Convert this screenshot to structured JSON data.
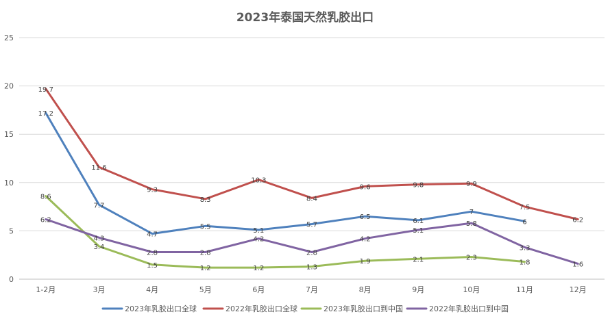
{
  "chart_data": {
    "type": "line",
    "title": "2023年泰国天然乳胶出口",
    "xlabel": "",
    "ylabel": "",
    "categories": [
      "1-2月",
      "3月",
      "4月",
      "5月",
      "6月",
      "7月",
      "8月",
      "9月",
      "10月",
      "11月",
      "12月"
    ],
    "ylim": [
      0,
      25
    ],
    "yticks": [
      "0",
      "5",
      "10",
      "15",
      "20",
      "25"
    ],
    "grid": true,
    "legend_position": "bottom",
    "series": [
      {
        "name": "2023年乳胶出口全球",
        "color": "#4f81bd",
        "values": [
          17.2,
          7.7,
          4.7,
          5.5,
          5.1,
          5.7,
          6.5,
          6.1,
          7,
          6,
          null
        ],
        "labels": [
          "17.2",
          "7.7",
          "4.7",
          "5.5",
          "5.1",
          "5.7",
          "6.5",
          "6.1",
          "7",
          "6",
          ""
        ]
      },
      {
        "name": "2022年乳胶出口全球",
        "color": "#c0504d",
        "values": [
          19.7,
          11.6,
          9.3,
          8.3,
          10.3,
          8.4,
          9.6,
          9.8,
          9.9,
          7.5,
          6.2
        ],
        "labels": [
          "19.7",
          "11.6",
          "9.3",
          "8.3",
          "10.3",
          "8.4",
          "9.6",
          "9.8",
          "9.9",
          "7.5",
          "6.2"
        ]
      },
      {
        "name": "2023年乳胶出口到中国",
        "color": "#9bbb59",
        "values": [
          8.6,
          3.4,
          1.5,
          1.2,
          1.2,
          1.3,
          1.9,
          2.1,
          2.3,
          1.8,
          null
        ],
        "labels": [
          "8.6",
          "3.4",
          "1.5",
          "1.2",
          "1.2",
          "1.3",
          "1.9",
          "2.1",
          "2.3",
          "1.8",
          ""
        ]
      },
      {
        "name": "2022年乳胶出口到中国",
        "color": "#8064a2",
        "values": [
          6.2,
          4.3,
          2.8,
          2.8,
          4.2,
          2.8,
          4.2,
          5.1,
          5.8,
          3.3,
          1.6
        ],
        "labels": [
          "6.2",
          "4.3",
          "2.8",
          "2.8",
          "4.2",
          "2.8",
          "4.2",
          "5.1",
          "5.8",
          "3.3",
          "1.6"
        ]
      }
    ]
  }
}
